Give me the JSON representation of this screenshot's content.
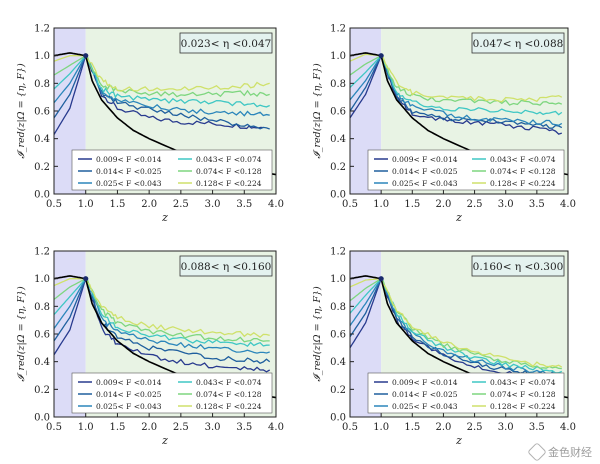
{
  "chart_data": [
    {
      "type": "line",
      "title": "0.023< η <0.047",
      "xlabel": "z",
      "ylabel": "𝓘_red(z|Ω = {η, F})",
      "xlim": [
        0.5,
        4.0
      ],
      "ylim": [
        0.0,
        1.2
      ],
      "xticks": [
        "0.5",
        "1.0",
        "1.5",
        "2.0",
        "2.5",
        "3.0",
        "3.5",
        "4.0"
      ],
      "yticks": [
        "0.0",
        "0.2",
        "0.4",
        "0.6",
        "0.8",
        "1.0",
        "1.2"
      ],
      "shaded_regions": [
        {
          "x": [
            0.5,
            1.0
          ],
          "color": "#dcdcf7"
        },
        {
          "x": [
            1.0,
            4.0
          ],
          "color": "#e8f3e4"
        }
      ],
      "series": [
        {
          "name": "0.009< F <0.014",
          "color": "#283a8e",
          "x": [
            0.5,
            0.75,
            1.0,
            1.25,
            1.5,
            2.0,
            2.5,
            3.0,
            3.5,
            3.8
          ],
          "values": [
            0.43,
            0.62,
            1.0,
            0.72,
            0.62,
            0.55,
            0.52,
            0.51,
            0.49,
            0.48
          ]
        },
        {
          "name": "0.014< F <0.025",
          "color": "#1f5f9e",
          "x": [
            0.5,
            0.75,
            1.0,
            1.25,
            1.5,
            2.0,
            2.5,
            3.0,
            3.5,
            3.9
          ],
          "values": [
            0.55,
            0.72,
            1.0,
            0.73,
            0.66,
            0.61,
            0.57,
            0.53,
            0.5,
            0.47
          ]
        },
        {
          "name": "0.025< F <0.043",
          "color": "#2b86bb",
          "x": [
            0.5,
            0.75,
            1.0,
            1.25,
            1.5,
            2.0,
            2.5,
            3.0,
            3.5,
            3.9
          ],
          "values": [
            0.66,
            0.8,
            1.0,
            0.74,
            0.68,
            0.64,
            0.61,
            0.59,
            0.58,
            0.57
          ]
        },
        {
          "name": "0.043< F <0.074",
          "color": "#3fc7c4",
          "x": [
            0.5,
            0.75,
            1.0,
            1.25,
            1.5,
            2.0,
            2.5,
            3.0,
            3.5,
            3.9
          ],
          "values": [
            0.76,
            0.87,
            1.0,
            0.76,
            0.71,
            0.68,
            0.67,
            0.66,
            0.65,
            0.64
          ]
        },
        {
          "name": "0.074< F <0.128",
          "color": "#7ed67f",
          "x": [
            0.5,
            0.75,
            1.0,
            1.25,
            1.5,
            2.0,
            2.5,
            3.0,
            3.5,
            3.9
          ],
          "values": [
            0.86,
            0.93,
            1.0,
            0.79,
            0.75,
            0.73,
            0.72,
            0.72,
            0.73,
            0.72
          ]
        },
        {
          "name": "0.128< F <0.224",
          "color": "#cfe16a",
          "x": [
            0.5,
            0.75,
            1.0,
            1.25,
            1.5,
            2.0,
            2.5,
            3.0,
            3.5,
            3.9
          ],
          "values": [
            0.96,
            1.0,
            1.0,
            0.82,
            0.76,
            0.76,
            0.76,
            0.77,
            0.78,
            0.8
          ]
        },
        {
          "name": "",
          "color": "#000000",
          "x": [
            0.5,
            0.75,
            1.0,
            1.1,
            1.25,
            1.5,
            1.75,
            2.0,
            2.5,
            3.0,
            3.5,
            4.0
          ],
          "values": [
            1.0,
            1.02,
            1.0,
            0.82,
            0.68,
            0.55,
            0.46,
            0.4,
            0.3,
            0.23,
            0.18,
            0.14
          ]
        }
      ],
      "legend": "lower-right"
    },
    {
      "type": "line",
      "title": "0.047< η <0.088",
      "xlabel": "z",
      "ylabel": "𝓘_red(z|Ω = {η, F})",
      "xlim": [
        0.5,
        4.0
      ],
      "ylim": [
        0.0,
        1.2
      ],
      "xticks": [
        "0.5",
        "1.0",
        "1.5",
        "2.0",
        "2.5",
        "3.0",
        "3.5",
        "4.0"
      ],
      "yticks": [
        "0.0",
        "0.2",
        "0.4",
        "0.6",
        "0.8",
        "1.0",
        "1.2"
      ],
      "shaded_regions": [
        {
          "x": [
            0.5,
            1.0
          ],
          "color": "#dcdcf7"
        },
        {
          "x": [
            1.0,
            4.0
          ],
          "color": "#e8f3e4"
        }
      ],
      "series": [
        {
          "name": "0.009< F <0.014",
          "color": "#283a8e",
          "x": [
            0.5,
            0.75,
            1.0,
            1.25,
            1.5,
            2.0,
            2.5,
            3.0,
            3.5,
            3.9
          ],
          "values": [
            0.55,
            0.72,
            1.0,
            0.7,
            0.58,
            0.53,
            0.51,
            0.5,
            0.47,
            0.44
          ]
        },
        {
          "name": "0.014< F <0.025",
          "color": "#1f5f9e",
          "x": [
            0.5,
            0.75,
            1.0,
            1.25,
            1.5,
            2.0,
            2.5,
            3.0,
            3.5,
            3.9
          ],
          "values": [
            0.6,
            0.77,
            1.0,
            0.7,
            0.6,
            0.55,
            0.53,
            0.52,
            0.5,
            0.48
          ]
        },
        {
          "name": "0.025< F <0.043",
          "color": "#2b86bb",
          "x": [
            0.5,
            0.75,
            1.0,
            1.25,
            1.5,
            2.0,
            2.5,
            3.0,
            3.5,
            3.9
          ],
          "values": [
            0.68,
            0.82,
            1.0,
            0.72,
            0.63,
            0.58,
            0.55,
            0.53,
            0.52,
            0.51
          ]
        },
        {
          "name": "0.043< F <0.074",
          "color": "#3fc7c4",
          "x": [
            0.5,
            0.75,
            1.0,
            1.25,
            1.5,
            2.0,
            2.5,
            3.0,
            3.5,
            3.9
          ],
          "values": [
            0.77,
            0.88,
            1.0,
            0.74,
            0.66,
            0.62,
            0.61,
            0.6,
            0.59,
            0.59
          ]
        },
        {
          "name": "0.074< F <0.128",
          "color": "#7ed67f",
          "x": [
            0.5,
            0.75,
            1.0,
            1.25,
            1.5,
            2.0,
            2.5,
            3.0,
            3.5,
            3.9
          ],
          "values": [
            0.86,
            0.94,
            1.0,
            0.77,
            0.71,
            0.68,
            0.67,
            0.66,
            0.66,
            0.65
          ]
        },
        {
          "name": "0.128< F <0.224",
          "color": "#cfe16a",
          "x": [
            0.5,
            0.75,
            1.0,
            1.25,
            1.5,
            2.0,
            2.5,
            3.0,
            3.5,
            3.9
          ],
          "values": [
            0.96,
            1.01,
            1.0,
            0.8,
            0.73,
            0.7,
            0.69,
            0.68,
            0.68,
            0.7
          ]
        },
        {
          "name": "",
          "color": "#000000",
          "x": [
            0.5,
            0.75,
            1.0,
            1.1,
            1.25,
            1.5,
            1.75,
            2.0,
            2.5,
            3.0,
            3.5,
            4.0
          ],
          "values": [
            1.0,
            1.02,
            1.0,
            0.82,
            0.68,
            0.55,
            0.46,
            0.4,
            0.3,
            0.23,
            0.18,
            0.14
          ]
        }
      ],
      "legend": "lower-right"
    },
    {
      "type": "line",
      "title": "0.088< η <0.160",
      "xlabel": "z",
      "ylabel": "𝓘_red(z|Ω = {η, F})",
      "xlim": [
        0.5,
        4.0
      ],
      "ylim": [
        0.0,
        1.2
      ],
      "xticks": [
        "0.5",
        "1.0",
        "1.5",
        "2.0",
        "2.5",
        "3.0",
        "3.5",
        "4.0"
      ],
      "yticks": [
        "0.0",
        "0.2",
        "0.4",
        "0.6",
        "0.8",
        "1.0",
        "1.2"
      ],
      "shaded_regions": [
        {
          "x": [
            0.5,
            1.0
          ],
          "color": "#dcdcf7"
        },
        {
          "x": [
            1.0,
            4.0
          ],
          "color": "#e8f3e4"
        }
      ],
      "series": [
        {
          "name": "0.009< F <0.014",
          "color": "#283a8e",
          "x": [
            0.5,
            0.75,
            1.0,
            1.25,
            1.5,
            2.0,
            2.5,
            3.0,
            3.5,
            3.9
          ],
          "values": [
            0.45,
            0.63,
            1.0,
            0.64,
            0.53,
            0.44,
            0.4,
            0.37,
            0.35,
            0.34
          ]
        },
        {
          "name": "0.014< F <0.025",
          "color": "#1f5f9e",
          "x": [
            0.5,
            0.75,
            1.0,
            1.25,
            1.5,
            2.0,
            2.5,
            3.0,
            3.5,
            3.9
          ],
          "values": [
            0.55,
            0.72,
            1.0,
            0.68,
            0.58,
            0.5,
            0.46,
            0.43,
            0.41,
            0.4
          ]
        },
        {
          "name": "0.025< F <0.043",
          "color": "#2b86bb",
          "x": [
            0.5,
            0.75,
            1.0,
            1.25,
            1.5,
            2.0,
            2.5,
            3.0,
            3.5,
            3.9
          ],
          "values": [
            0.64,
            0.8,
            1.0,
            0.71,
            0.62,
            0.56,
            0.52,
            0.5,
            0.48,
            0.47
          ]
        },
        {
          "name": "0.043< F <0.074",
          "color": "#3fc7c4",
          "x": [
            0.5,
            0.75,
            1.0,
            1.25,
            1.5,
            2.0,
            2.5,
            3.0,
            3.5,
            3.9
          ],
          "values": [
            0.74,
            0.87,
            1.0,
            0.74,
            0.65,
            0.59,
            0.56,
            0.54,
            0.53,
            0.52
          ]
        },
        {
          "name": "0.074< F <0.128",
          "color": "#7ed67f",
          "x": [
            0.5,
            0.75,
            1.0,
            1.25,
            1.5,
            2.0,
            2.5,
            3.0,
            3.5,
            3.9
          ],
          "values": [
            0.85,
            0.94,
            1.0,
            0.77,
            0.68,
            0.62,
            0.59,
            0.57,
            0.56,
            0.55
          ]
        },
        {
          "name": "0.128< F <0.224",
          "color": "#cfe16a",
          "x": [
            0.5,
            0.75,
            1.0,
            1.25,
            1.5,
            2.0,
            2.5,
            3.0,
            3.5,
            3.9
          ],
          "values": [
            0.95,
            1.0,
            1.0,
            0.8,
            0.72,
            0.66,
            0.63,
            0.61,
            0.6,
            0.59
          ]
        },
        {
          "name": "",
          "color": "#000000",
          "x": [
            0.5,
            0.75,
            1.0,
            1.1,
            1.25,
            1.5,
            1.75,
            2.0,
            2.5,
            3.0,
            3.5,
            4.0
          ],
          "values": [
            1.0,
            1.02,
            1.0,
            0.82,
            0.68,
            0.55,
            0.46,
            0.4,
            0.3,
            0.23,
            0.18,
            0.14
          ]
        }
      ],
      "legend": "lower-right"
    },
    {
      "type": "line",
      "title": "0.160< η <0.300",
      "xlabel": "z",
      "ylabel": "𝓘_red(z|Ω = {η, F})",
      "xlim": [
        0.5,
        4.0
      ],
      "ylim": [
        0.0,
        1.2
      ],
      "xticks": [
        "0.5",
        "1.0",
        "1.5",
        "2.0",
        "2.5",
        "3.0",
        "3.5",
        "4.0"
      ],
      "yticks": [
        "0.0",
        "0.2",
        "0.4",
        "0.6",
        "0.8",
        "1.0",
        "1.2"
      ],
      "shaded_regions": [
        {
          "x": [
            0.5,
            1.0
          ],
          "color": "#dcdcf7"
        },
        {
          "x": [
            1.0,
            4.0
          ],
          "color": "#e8f3e4"
        }
      ],
      "series": [
        {
          "name": "0.009< F <0.014",
          "color": "#283a8e",
          "x": [
            0.5,
            0.75,
            1.0,
            1.25,
            1.5,
            2.0,
            2.5,
            3.0,
            3.5,
            3.9
          ],
          "values": [
            0.5,
            0.68,
            1.0,
            0.7,
            0.56,
            0.44,
            0.37,
            0.32,
            0.29,
            0.27
          ]
        },
        {
          "name": "0.014< F <0.025",
          "color": "#1f5f9e",
          "x": [
            0.5,
            0.75,
            1.0,
            1.25,
            1.5,
            2.0,
            2.5,
            3.0,
            3.5,
            3.9
          ],
          "values": [
            0.58,
            0.75,
            1.0,
            0.71,
            0.58,
            0.46,
            0.39,
            0.34,
            0.31,
            0.29
          ]
        },
        {
          "name": "0.025< F <0.043",
          "color": "#2b86bb",
          "x": [
            0.5,
            0.75,
            1.0,
            1.25,
            1.5,
            2.0,
            2.5,
            3.0,
            3.5,
            3.9
          ],
          "values": [
            0.66,
            0.82,
            1.0,
            0.73,
            0.6,
            0.48,
            0.41,
            0.36,
            0.33,
            0.31
          ]
        },
        {
          "name": "0.043< F <0.074",
          "color": "#3fc7c4",
          "x": [
            0.5,
            0.75,
            1.0,
            1.25,
            1.5,
            2.0,
            2.5,
            3.0,
            3.5,
            3.9
          ],
          "values": [
            0.75,
            0.88,
            1.0,
            0.75,
            0.62,
            0.5,
            0.43,
            0.38,
            0.35,
            0.33
          ]
        },
        {
          "name": "0.074< F <0.128",
          "color": "#7ed67f",
          "x": [
            0.5,
            0.75,
            1.0,
            1.25,
            1.5,
            2.0,
            2.5,
            3.0,
            3.5,
            3.9
          ],
          "values": [
            0.84,
            0.93,
            1.0,
            0.77,
            0.64,
            0.52,
            0.45,
            0.4,
            0.37,
            0.35
          ]
        },
        {
          "name": "0.128< F <0.224",
          "color": "#cfe16a",
          "x": [
            0.5,
            0.75,
            1.0,
            1.25,
            1.5,
            2.0,
            2.5,
            3.0,
            3.5,
            3.9
          ],
          "values": [
            0.94,
            0.99,
            1.0,
            0.78,
            0.66,
            0.54,
            0.47,
            0.42,
            0.38,
            0.36
          ]
        },
        {
          "name": "",
          "color": "#000000",
          "x": [
            0.5,
            0.75,
            1.0,
            1.1,
            1.25,
            1.5,
            1.75,
            2.0,
            2.5,
            3.0,
            3.5,
            4.0
          ],
          "values": [
            1.0,
            1.02,
            1.0,
            0.82,
            0.68,
            0.55,
            0.46,
            0.4,
            0.3,
            0.23,
            0.18,
            0.14
          ]
        }
      ],
      "legend": "lower-right"
    }
  ],
  "watermark": "金色财经"
}
